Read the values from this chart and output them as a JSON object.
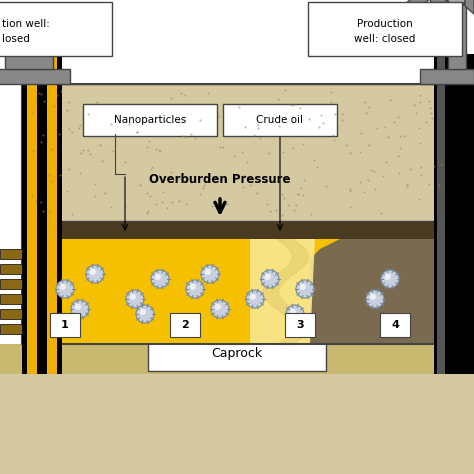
{
  "bg_color": "#ffffff",
  "sand_color": "#d4c9a0",
  "caprock_color": "#c8b880",
  "oil_yellow": "#f5c000",
  "oil_light": "#fde87c",
  "well_yellow": "#f0a800",
  "well_dark": "#8B6914",
  "black": "#000000",
  "gray": "#888888",
  "dark_gray": "#444444",
  "light_gray": "#aaaaaa",
  "white": "#ffffff",
  "labels": {
    "nanoparticles": "Nanoparticles",
    "crude_oil": "Crude oil",
    "overburden": "Overburden Pressure",
    "caprock": "Caprock",
    "prod_well_line1": "Production",
    "prod_well_line2": "well: closed",
    "inj_well_line1": "tion well:",
    "inj_well_line2": "losed"
  }
}
